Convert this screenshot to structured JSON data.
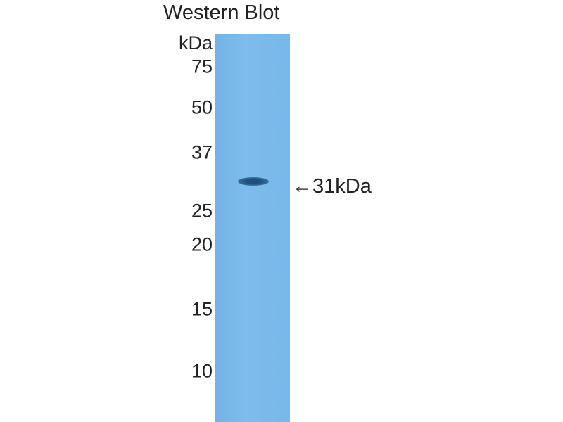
{
  "title": "Western Blot",
  "unit": "kDa",
  "markers": [
    "75",
    "50",
    "37",
    "25",
    "20",
    "15",
    "10"
  ],
  "band_annotation": "←31kDa",
  "lane_color": "#7ab8e8",
  "band_color": "#2a5a8a"
}
